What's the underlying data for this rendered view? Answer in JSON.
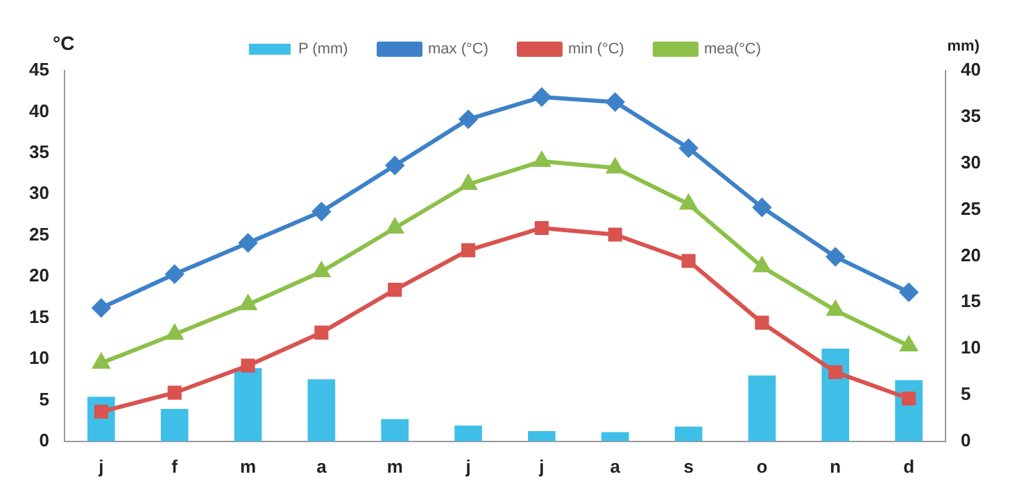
{
  "chart_data": {
    "type": "bar",
    "ylabel": "°C",
    "y2label": "mm)",
    "categories": [
      "j",
      "f",
      "m",
      "a",
      "m",
      "j",
      "j",
      "a",
      "s",
      "o",
      "n",
      "d"
    ],
    "series": [
      {
        "name": "P (mm)",
        "axis": "y2",
        "color": "#3fbfe8",
        "values": [
          4.8,
          3.5,
          7.9,
          6.7,
          2.4,
          1.7,
          1.1,
          1.0,
          1.6,
          7.1,
          10.0,
          6.6
        ]
      },
      {
        "name": "max (°C)",
        "type": "line",
        "marker": "diamond",
        "color": "#3d82c8",
        "values": [
          16.2,
          20.3,
          24.1,
          27.9,
          33.5,
          39.1,
          41.8,
          41.2,
          35.6,
          28.4,
          22.4,
          18.1
        ]
      },
      {
        "name": "min (°C)",
        "type": "line",
        "marker": "square",
        "color": "#d9534f",
        "values": [
          3.6,
          5.9,
          9.2,
          13.2,
          18.4,
          23.2,
          25.9,
          25.1,
          21.9,
          14.4,
          8.4,
          5.2
        ]
      },
      {
        "name": "mea(°C)",
        "type": "line",
        "marker": "triangle",
        "color": "#8cc04a",
        "values": [
          9.5,
          13.0,
          16.6,
          20.6,
          25.9,
          31.2,
          34.0,
          33.2,
          28.8,
          21.2,
          15.9,
          11.6
        ]
      }
    ],
    "ylim": [
      0,
      45
    ],
    "yticks": [
      0,
      5,
      10,
      15,
      20,
      25,
      30,
      35,
      40,
      45
    ],
    "y2lim": [
      0,
      40
    ],
    "y2ticks": [
      0,
      5,
      10,
      15,
      20,
      25,
      30,
      35,
      40
    ],
    "grid": false,
    "legend": "top"
  }
}
